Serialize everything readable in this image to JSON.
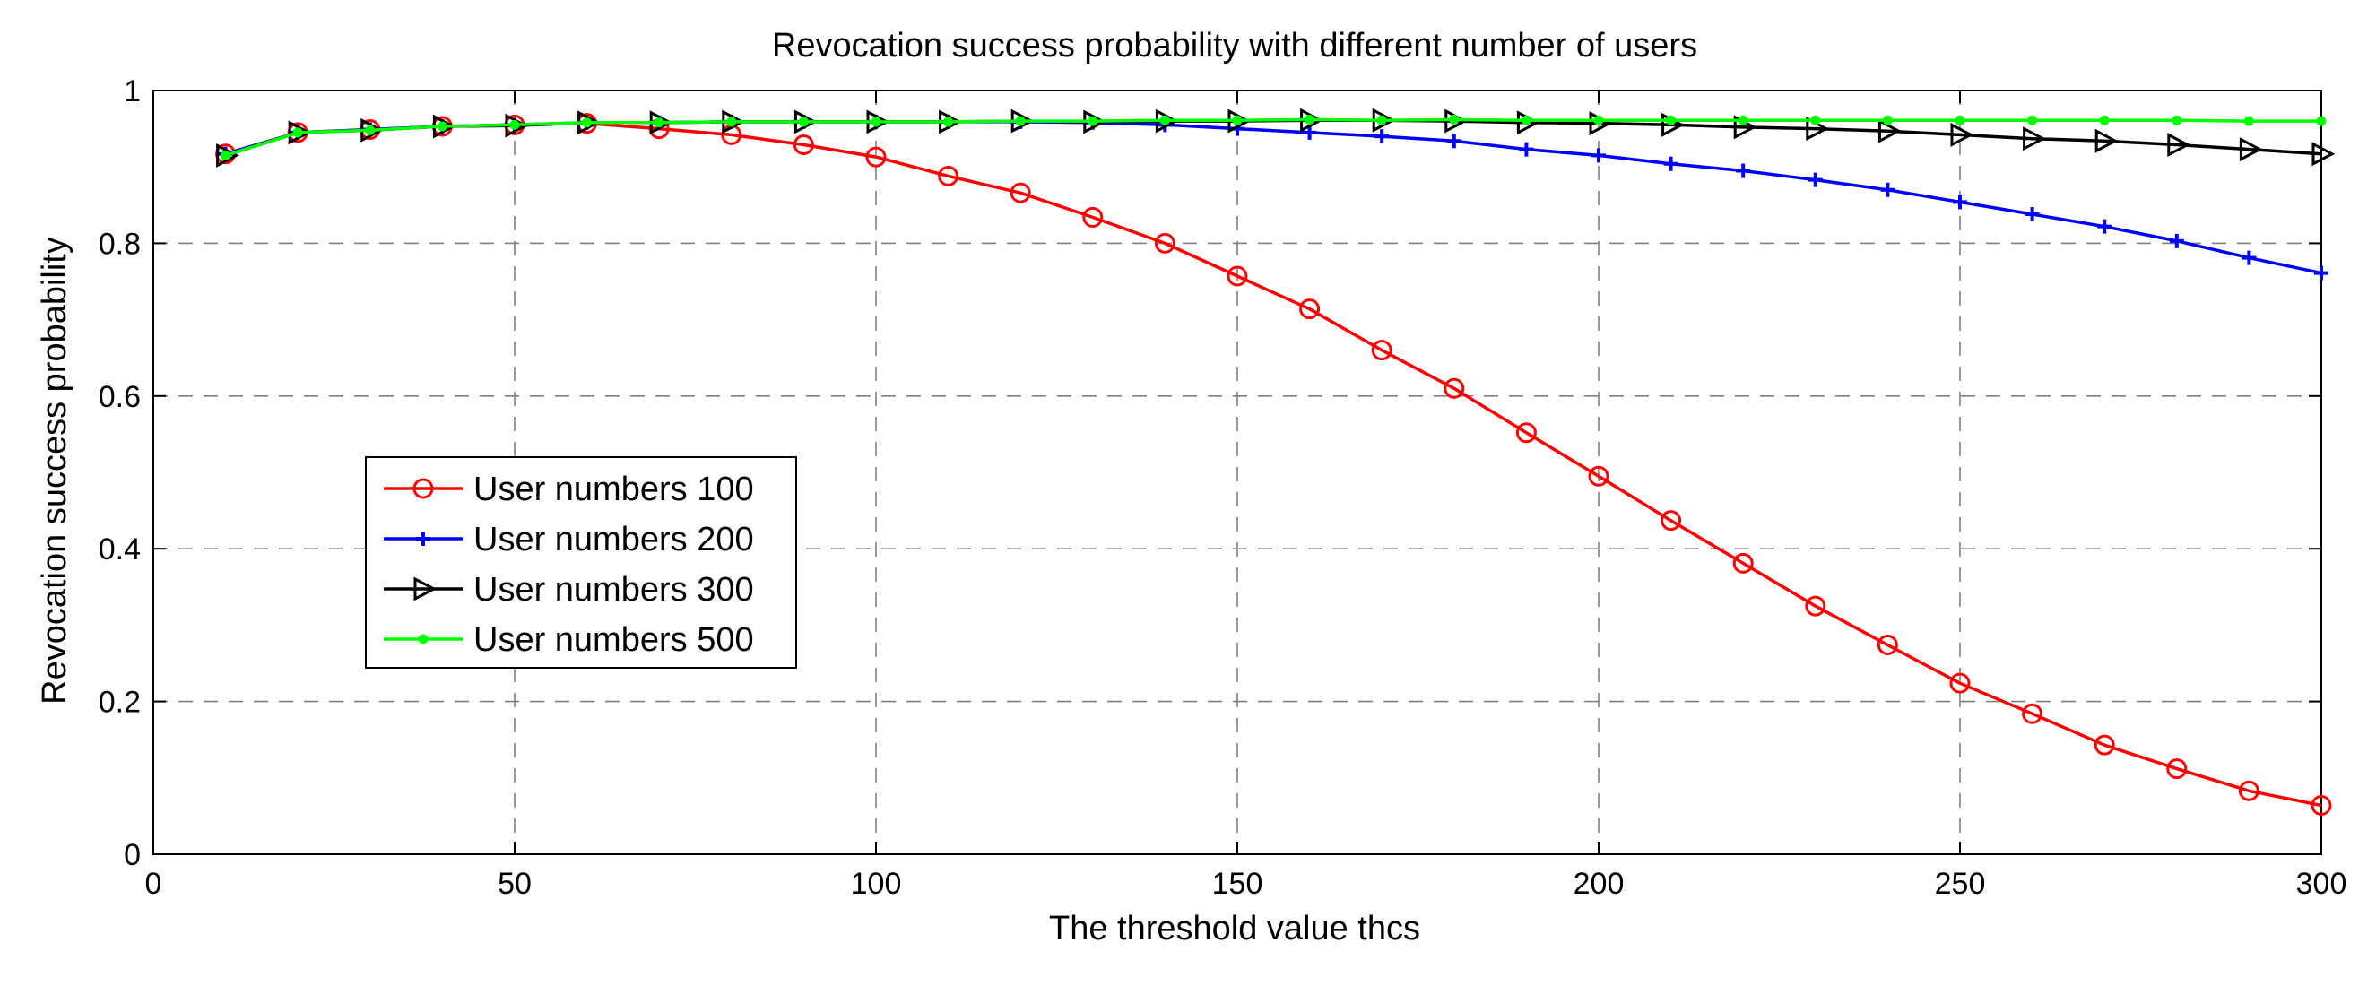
{
  "chart_data": {
    "type": "line",
    "title": "Revocation success probability with different number of users",
    "xlabel": "The threshold value thcs",
    "ylabel": "Revocation success probability",
    "xlim": [
      0,
      300
    ],
    "ylim": [
      0,
      1
    ],
    "xticks": [
      0,
      50,
      100,
      150,
      200,
      250,
      300
    ],
    "yticks": [
      0,
      0.2,
      0.4,
      0.6,
      0.8,
      1
    ],
    "xtick_labels": [
      "0",
      "50",
      "100",
      "150",
      "200",
      "250",
      "300"
    ],
    "ytick_labels": [
      "0",
      "0.2",
      "0.4",
      "0.6",
      "0.8",
      "1"
    ],
    "grid": true,
    "legend_position": "center-left",
    "x": [
      10,
      20,
      30,
      40,
      50,
      60,
      70,
      80,
      90,
      100,
      110,
      120,
      130,
      140,
      150,
      160,
      170,
      180,
      190,
      200,
      210,
      220,
      230,
      240,
      250,
      260,
      270,
      280,
      290,
      300
    ],
    "series": [
      {
        "name": "User numbers 100",
        "color": "#ff0000",
        "marker": "circle",
        "values": [
          0.917,
          0.945,
          0.949,
          0.953,
          0.955,
          0.957,
          0.95,
          0.942,
          0.929,
          0.913,
          0.888,
          0.866,
          0.834,
          0.8,
          0.757,
          0.714,
          0.66,
          0.61,
          0.552,
          0.495,
          0.437,
          0.381,
          0.325,
          0.274,
          0.224,
          0.184,
          0.143,
          0.112,
          0.083,
          0.064
        ]
      },
      {
        "name": "User numbers 200",
        "color": "#0000ff",
        "marker": "plus",
        "values": [
          0.917,
          0.945,
          0.949,
          0.953,
          0.955,
          0.958,
          0.958,
          0.959,
          0.959,
          0.959,
          0.959,
          0.959,
          0.958,
          0.955,
          0.95,
          0.945,
          0.94,
          0.934,
          0.923,
          0.915,
          0.904,
          0.895,
          0.883,
          0.87,
          0.854,
          0.838,
          0.822,
          0.803,
          0.781,
          0.761
        ]
      },
      {
        "name": "User numbers 300",
        "color": "#000000",
        "marker": "triangle-right",
        "values": [
          0.915,
          0.945,
          0.948,
          0.953,
          0.954,
          0.958,
          0.958,
          0.959,
          0.959,
          0.959,
          0.959,
          0.96,
          0.959,
          0.96,
          0.96,
          0.961,
          0.961,
          0.96,
          0.958,
          0.957,
          0.955,
          0.952,
          0.95,
          0.947,
          0.942,
          0.937,
          0.934,
          0.929,
          0.923,
          0.917
        ]
      },
      {
        "name": "User numbers 500",
        "color": "#00ff00",
        "marker": "dot",
        "values": [
          0.915,
          0.945,
          0.948,
          0.953,
          0.955,
          0.958,
          0.958,
          0.959,
          0.959,
          0.959,
          0.959,
          0.96,
          0.96,
          0.961,
          0.961,
          0.962,
          0.961,
          0.962,
          0.961,
          0.961,
          0.961,
          0.961,
          0.961,
          0.961,
          0.961,
          0.961,
          0.961,
          0.961,
          0.96,
          0.96
        ]
      }
    ]
  }
}
